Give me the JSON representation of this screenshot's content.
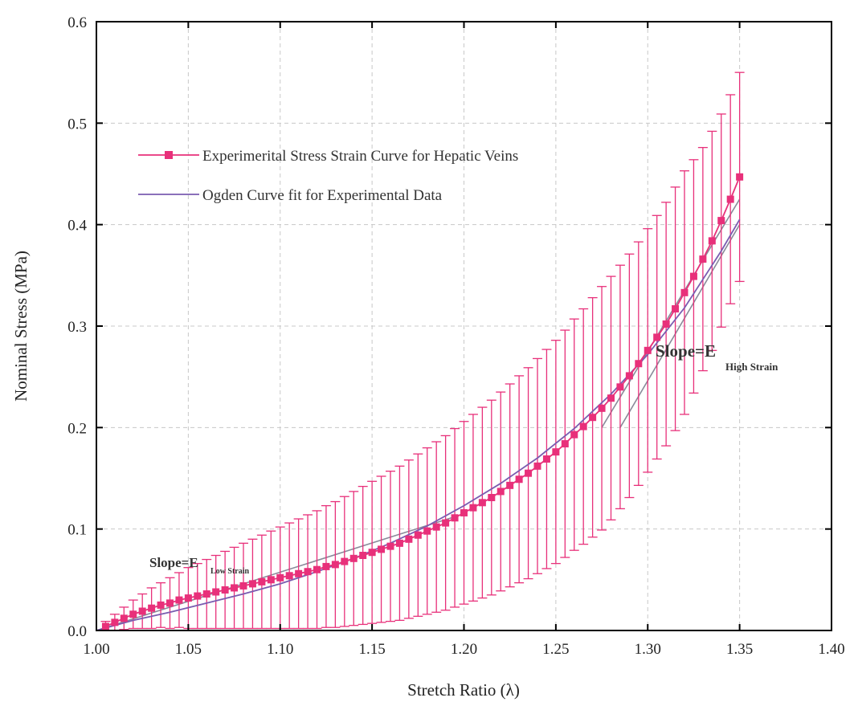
{
  "chart_data": {
    "type": "line",
    "title": "",
    "xlabel": "Stretch Ratio (λ)",
    "ylabel": "Nominal Stress (MPa)",
    "xlim": [
      1.0,
      1.4
    ],
    "ylim": [
      0.0,
      0.6
    ],
    "x_ticks": [
      "1.00",
      "1.05",
      "1.10",
      "1.15",
      "1.20",
      "1.25",
      "1.30",
      "1.35",
      "1.40"
    ],
    "y_ticks": [
      "0.0",
      "0.1",
      "0.2",
      "0.3",
      "0.4",
      "0.5",
      "0.6"
    ],
    "grid": true,
    "legend_position": "top-left",
    "colors": {
      "experimental": "#e8307a",
      "ogden": "#7a5cb0",
      "slope_line": "#8a8a9a",
      "grid": "#c8c8c8"
    },
    "series": [
      {
        "name": "Experimerital Stress Strain Curve for Hepatic Veins",
        "marker": "square",
        "x": [
          1.005,
          1.01,
          1.015,
          1.02,
          1.025,
          1.03,
          1.035,
          1.04,
          1.045,
          1.05,
          1.055,
          1.06,
          1.065,
          1.07,
          1.075,
          1.08,
          1.085,
          1.09,
          1.095,
          1.1,
          1.105,
          1.11,
          1.115,
          1.12,
          1.125,
          1.13,
          1.135,
          1.14,
          1.145,
          1.15,
          1.155,
          1.16,
          1.165,
          1.17,
          1.175,
          1.18,
          1.185,
          1.19,
          1.195,
          1.2,
          1.205,
          1.21,
          1.215,
          1.22,
          1.225,
          1.23,
          1.235,
          1.24,
          1.245,
          1.25,
          1.255,
          1.26,
          1.265,
          1.27,
          1.275,
          1.28,
          1.285,
          1.29,
          1.295,
          1.3,
          1.305,
          1.31,
          1.315,
          1.32,
          1.325,
          1.33,
          1.335,
          1.34,
          1.345,
          1.35
        ],
        "y": [
          0.004,
          0.008,
          0.012,
          0.016,
          0.019,
          0.022,
          0.025,
          0.027,
          0.03,
          0.032,
          0.034,
          0.036,
          0.038,
          0.04,
          0.042,
          0.044,
          0.046,
          0.048,
          0.05,
          0.052,
          0.054,
          0.056,
          0.058,
          0.06,
          0.063,
          0.065,
          0.068,
          0.071,
          0.074,
          0.077,
          0.08,
          0.083,
          0.086,
          0.09,
          0.094,
          0.098,
          0.102,
          0.106,
          0.111,
          0.116,
          0.121,
          0.126,
          0.131,
          0.137,
          0.143,
          0.149,
          0.155,
          0.162,
          0.169,
          0.176,
          0.184,
          0.193,
          0.201,
          0.21,
          0.219,
          0.229,
          0.24,
          0.251,
          0.263,
          0.276,
          0.289,
          0.302,
          0.317,
          0.333,
          0.349,
          0.366,
          0.384,
          0.404,
          0.425,
          0.447
        ],
        "y_err": [
          0.005,
          0.008,
          0.011,
          0.014,
          0.017,
          0.02,
          0.022,
          0.025,
          0.027,
          0.03,
          0.032,
          0.034,
          0.036,
          0.038,
          0.04,
          0.042,
          0.044,
          0.046,
          0.048,
          0.05,
          0.052,
          0.054,
          0.056,
          0.058,
          0.06,
          0.062,
          0.064,
          0.066,
          0.068,
          0.07,
          0.072,
          0.074,
          0.076,
          0.078,
          0.08,
          0.082,
          0.084,
          0.086,
          0.088,
          0.09,
          0.092,
          0.094,
          0.096,
          0.098,
          0.1,
          0.102,
          0.104,
          0.106,
          0.108,
          0.11,
          0.112,
          0.114,
          0.116,
          0.118,
          0.12,
          0.12,
          0.12,
          0.12,
          0.12,
          0.12,
          0.12,
          0.12,
          0.12,
          0.12,
          0.115,
          0.11,
          0.108,
          0.105,
          0.103,
          0.103
        ]
      },
      {
        "name": "Ogden Curve fit for Experimental Data",
        "marker": "none",
        "x": [
          1.0,
          1.02,
          1.04,
          1.06,
          1.08,
          1.1,
          1.12,
          1.14,
          1.16,
          1.18,
          1.2,
          1.22,
          1.24,
          1.26,
          1.28,
          1.3,
          1.32,
          1.34,
          1.35
        ],
        "y": [
          0.0,
          0.01,
          0.018,
          0.027,
          0.036,
          0.046,
          0.058,
          0.071,
          0.086,
          0.103,
          0.123,
          0.145,
          0.17,
          0.199,
          0.233,
          0.272,
          0.318,
          0.374,
          0.405
        ]
      }
    ],
    "annotations": [
      {
        "main": "Slope=E",
        "sub": "Low Strain"
      },
      {
        "main": "Slope=E",
        "sub": "High Strain"
      }
    ],
    "slope_lines": [
      {
        "x": [
          1.0,
          1.2
        ],
        "y": [
          0.0,
          0.115
        ]
      },
      {
        "x": [
          1.275,
          1.35
        ],
        "y": [
          0.2,
          0.425
        ]
      },
      {
        "x": [
          1.285,
          1.35
        ],
        "y": [
          0.2,
          0.4
        ]
      }
    ]
  }
}
